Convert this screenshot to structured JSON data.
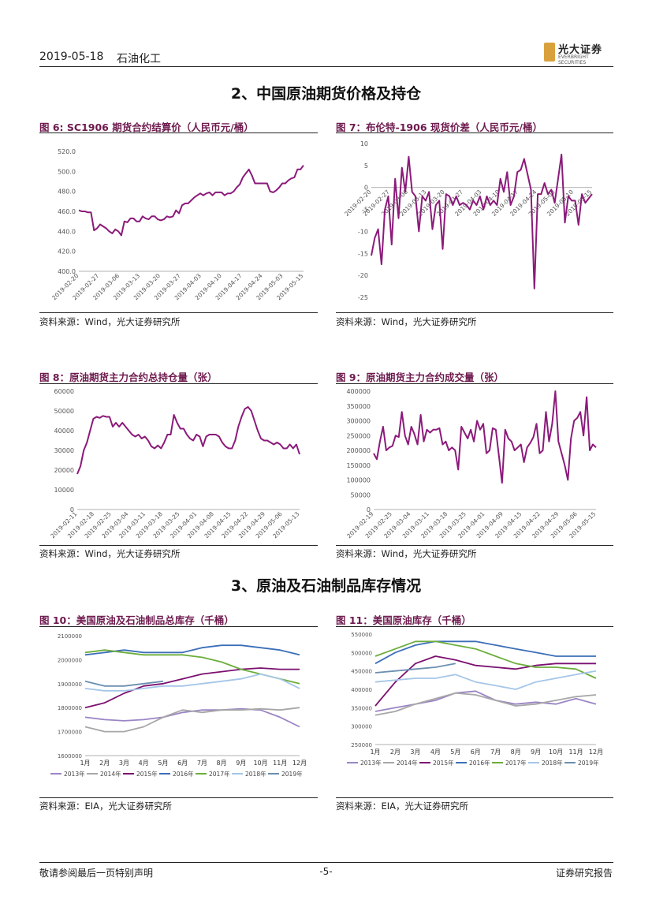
{
  "header": {
    "date": "2019-05-18",
    "section": "石油化工"
  },
  "logo": {
    "cn": "光大证券",
    "en": "EVERBRIGHT SECURITIES"
  },
  "sections": [
    "2、中国原油期货价格及持仓",
    "3、原油及石油制品库存情况"
  ],
  "figures": [
    {
      "title": "图 6:   SC1906 期货合约结算价（人民币元/桶）",
      "source": "资料来源：Wind，光大证券研究所"
    },
    {
      "title": "图 7：布伦特-1906 现货价差（人民币元/桶）",
      "source": "资料来源：Wind，光大证券研究所"
    },
    {
      "title": "图 8：原油期货主力合约总持仓量（张）",
      "source": "资料来源：Wind，光大证券研究所"
    },
    {
      "title": "图 9：原油期货主力合约成交量（张）",
      "source": "资料来源：Wind，光大证券研究所"
    },
    {
      "title": "图 10：美国原油及石油制品总库存（千桶）",
      "source": "资料来源：EIA，光大证券研究所"
    },
    {
      "title": "图 11：美国原油库存（千桶）",
      "source": "资料来源：EIA，光大证券研究所"
    }
  ],
  "footer": {
    "left": "敬请参阅最后一页特别声明",
    "center": "-5-",
    "right": "证券研究报告"
  },
  "colors": {
    "purple": "#8b1a7a",
    "y2013": "#9b85c4",
    "y2014": "#a7a7a7",
    "y2015": "#7b1070",
    "y2016": "#3c6fb8",
    "y2017": "#6cae3c",
    "y2018": "#a5c6e8",
    "y2019": "#6a8fb0"
  },
  "chart_data": [
    {
      "type": "line",
      "ylim": [
        400,
        520
      ],
      "yticks": [
        "520.0",
        "500.0",
        "480.0",
        "460.0",
        "440.0",
        "420.0",
        "400.0"
      ],
      "xticks": [
        "2019-02-20",
        "2019-02-27",
        "2019-03-06",
        "2019-03-13",
        "2019-03-20",
        "2019-03-27",
        "2019-04-03",
        "2019-04-10",
        "2019-04-17",
        "2019-04-24",
        "2019-05-03",
        "2019-05-15"
      ],
      "values": [
        461,
        460,
        460,
        459,
        459,
        441,
        443,
        447,
        445,
        443,
        440,
        438,
        442,
        440,
        436,
        450,
        449,
        453,
        453,
        450,
        450,
        455,
        453,
        452,
        455,
        455,
        452,
        451,
        452,
        455,
        454,
        455,
        461,
        458,
        466,
        468,
        468,
        471,
        474,
        476,
        478,
        476,
        478,
        479,
        476,
        479,
        479,
        479,
        476,
        478,
        478,
        480,
        484,
        487,
        494,
        498,
        502,
        496,
        488,
        488,
        488,
        488,
        488,
        480,
        479,
        481,
        484,
        488,
        488,
        491,
        493,
        494,
        502,
        502,
        506
      ]
    },
    {
      "type": "line",
      "ylim": [
        -25,
        10
      ],
      "yticks": [
        "10",
        "5",
        "0",
        "-5",
        "-10",
        "-15",
        "-20",
        "-25"
      ],
      "xticks": [
        "2019-02-20",
        "2019-02-27",
        "2019-03-06",
        "2019-03-13",
        "2019-03-20",
        "2019-03-27",
        "2019-04-03",
        "2019-04-10",
        "2019-04-17",
        "2019-04-24",
        "2019-05-03",
        "2019-05-10",
        "2019-05-15"
      ],
      "values": [
        -15.5,
        -11.5,
        -9.5,
        -17.5,
        -5.0,
        -2.0,
        -13.0,
        2.0,
        -7.0,
        4.5,
        -1.0,
        7.0,
        -1.0,
        -2.0,
        -10.0,
        -2.0,
        -3.0,
        -1.0,
        -9.5,
        -4.0,
        -3.0,
        -14.0,
        -1.5,
        -2.0,
        -4.0,
        -2.0,
        -4.0,
        -3.5,
        -4.0,
        -5.0,
        -3.0,
        -4.0,
        -2.0,
        -5.0,
        -2.0,
        -4.0,
        -3.0,
        -4.0,
        2.0,
        -1.0,
        3.5,
        -4.0,
        -2.0,
        3.5,
        4.0,
        6.5,
        3.0,
        -0.5,
        -23.0,
        -1.5,
        -1.5,
        1.0,
        -1.5,
        -0.5,
        -3.5,
        2.0,
        7.5,
        -8.0,
        -2.0,
        -3.0,
        -3.0,
        -8.5,
        -1.5,
        -3.5,
        -2.5,
        -1.5
      ]
    },
    {
      "type": "line",
      "ylim": [
        0,
        60000
      ],
      "yticks": [
        "60000",
        "50000",
        "40000",
        "30000",
        "20000",
        "10000",
        "0"
      ],
      "xticks": [
        "2019-02-11",
        "2019-02-18",
        "2019-02-25",
        "2019-03-04",
        "2019-03-11",
        "2019-03-18",
        "2019-03-25",
        "2019-04-01",
        "2019-04-08",
        "2019-04-15",
        "2019-04-22",
        "2019-04-29",
        "2019-05-06",
        "2019-05-13"
      ],
      "values": [
        18000,
        22000,
        30000,
        34000,
        40000,
        46000,
        47000,
        46500,
        47500,
        47000,
        47000,
        42000,
        44000,
        42000,
        44000,
        42000,
        40000,
        38000,
        37000,
        38000,
        36000,
        37000,
        35000,
        32000,
        31000,
        32500,
        31000,
        34000,
        38000,
        38000,
        48000,
        44000,
        41000,
        41000,
        38000,
        36000,
        35000,
        38000,
        37000,
        32000,
        37000,
        38000,
        38000,
        38000,
        37000,
        34000,
        32000,
        31000,
        31000,
        35000,
        42000,
        47000,
        51000,
        52000,
        50000,
        45000,
        40000,
        36000,
        35000,
        35000,
        34000,
        33000,
        34000,
        33000,
        31000,
        31000,
        33000,
        31000,
        33000,
        28000
      ]
    },
    {
      "type": "line",
      "ylim": [
        0,
        400000
      ],
      "yticks": [
        "400000",
        "350000",
        "300000",
        "250000",
        "200000",
        "150000",
        "100000",
        "50000",
        "0"
      ],
      "xticks": [
        "2019-02-19",
        "2019-02-25",
        "2019-03-04",
        "2019-03-11",
        "2019-03-18",
        "2019-03-25",
        "2019-04-01",
        "2019-04-09",
        "2019-04-15",
        "2019-04-22",
        "2019-04-29",
        "2019-05-06",
        "2019-05-15"
      ],
      "values": [
        190000,
        170000,
        230000,
        280000,
        200000,
        210000,
        215000,
        250000,
        245000,
        330000,
        250000,
        220000,
        280000,
        255000,
        220000,
        320000,
        230000,
        270000,
        260000,
        270000,
        270000,
        275000,
        220000,
        230000,
        200000,
        210000,
        200000,
        135000,
        280000,
        260000,
        240000,
        270000,
        230000,
        300000,
        270000,
        290000,
        190000,
        200000,
        275000,
        270000,
        180000,
        90000,
        270000,
        240000,
        230000,
        200000,
        210000,
        220000,
        160000,
        210000,
        225000,
        245000,
        290000,
        190000,
        200000,
        330000,
        230000,
        290000,
        400000,
        230000,
        190000,
        150000,
        100000,
        240000,
        300000,
        310000,
        330000,
        250000,
        380000,
        200000,
        220000,
        210000
      ]
    },
    {
      "type": "line",
      "ylim": [
        1600000,
        2100000
      ],
      "yticks": [
        "2100000",
        "2000000",
        "1900000",
        "1800000",
        "1700000",
        "1600000"
      ],
      "xticks": [
        "1月",
        "2月",
        "3月",
        "4月",
        "5月",
        "6月",
        "7月",
        "8月",
        "9月",
        "10月",
        "11月",
        "12月"
      ],
      "legend": [
        "2013年",
        "2014年",
        "2015年",
        "2016年",
        "2017年",
        "2018年",
        "2019年"
      ],
      "series": [
        {
          "name": "2013年",
          "values": [
            1760000,
            1750000,
            1745000,
            1750000,
            1760000,
            1780000,
            1790000,
            1790000,
            1795000,
            1790000,
            1760000,
            1720000
          ]
        },
        {
          "name": "2014年",
          "values": [
            1720000,
            1700000,
            1700000,
            1720000,
            1760000,
            1790000,
            1780000,
            1790000,
            1790000,
            1795000,
            1790000,
            1800000
          ]
        },
        {
          "name": "2015年",
          "values": [
            1800000,
            1820000,
            1860000,
            1890000,
            1900000,
            1920000,
            1940000,
            1950000,
            1960000,
            1965000,
            1960000,
            1960000
          ]
        },
        {
          "name": "2016年",
          "values": [
            2020000,
            2030000,
            2040000,
            2030000,
            2030000,
            2030000,
            2050000,
            2060000,
            2060000,
            2050000,
            2040000,
            2020000
          ]
        },
        {
          "name": "2017年",
          "values": [
            2030000,
            2040000,
            2030000,
            2020000,
            2020000,
            2020000,
            2010000,
            1990000,
            1960000,
            1940000,
            1920000,
            1900000
          ]
        },
        {
          "name": "2018年",
          "values": [
            1880000,
            1870000,
            1870000,
            1880000,
            1890000,
            1890000,
            1900000,
            1910000,
            1920000,
            1940000,
            1920000,
            1880000
          ]
        },
        {
          "name": "2019年",
          "values": [
            1910000,
            1890000,
            1890000,
            1900000,
            1910000
          ]
        }
      ]
    },
    {
      "type": "line",
      "ylim": [
        250000,
        550000
      ],
      "yticks": [
        "550000",
        "500000",
        "450000",
        "400000",
        "350000",
        "300000",
        "250000"
      ],
      "xticks": [
        "1月",
        "2月",
        "3月",
        "4月",
        "5月",
        "6月",
        "7月",
        "8月",
        "9月",
        "10月",
        "11月",
        "12月"
      ],
      "legend": [
        "2013年",
        "2014年",
        "2015年",
        "2016年",
        "2017年",
        "2018年",
        "2019年"
      ],
      "series": [
        {
          "name": "2013年",
          "values": [
            340000,
            350000,
            360000,
            370000,
            390000,
            395000,
            370000,
            360000,
            365000,
            360000,
            375000,
            360000
          ]
        },
        {
          "name": "2014年",
          "values": [
            330000,
            340000,
            360000,
            375000,
            390000,
            385000,
            370000,
            355000,
            360000,
            370000,
            380000,
            385000
          ]
        },
        {
          "name": "2015年",
          "values": [
            355000,
            420000,
            470000,
            490000,
            480000,
            465000,
            460000,
            455000,
            465000,
            470000,
            470000,
            470000
          ]
        },
        {
          "name": "2016年",
          "values": [
            470000,
            500000,
            520000,
            530000,
            530000,
            530000,
            520000,
            510000,
            500000,
            490000,
            490000,
            490000
          ]
        },
        {
          "name": "2017年",
          "values": [
            490000,
            510000,
            530000,
            530000,
            520000,
            510000,
            490000,
            470000,
            460000,
            460000,
            455000,
            430000
          ]
        },
        {
          "name": "2018年",
          "values": [
            420000,
            425000,
            430000,
            430000,
            440000,
            420000,
            410000,
            400000,
            420000,
            430000,
            440000,
            450000
          ]
        },
        {
          "name": "2019年",
          "values": [
            445000,
            450000,
            455000,
            460000,
            470000
          ]
        }
      ]
    }
  ]
}
